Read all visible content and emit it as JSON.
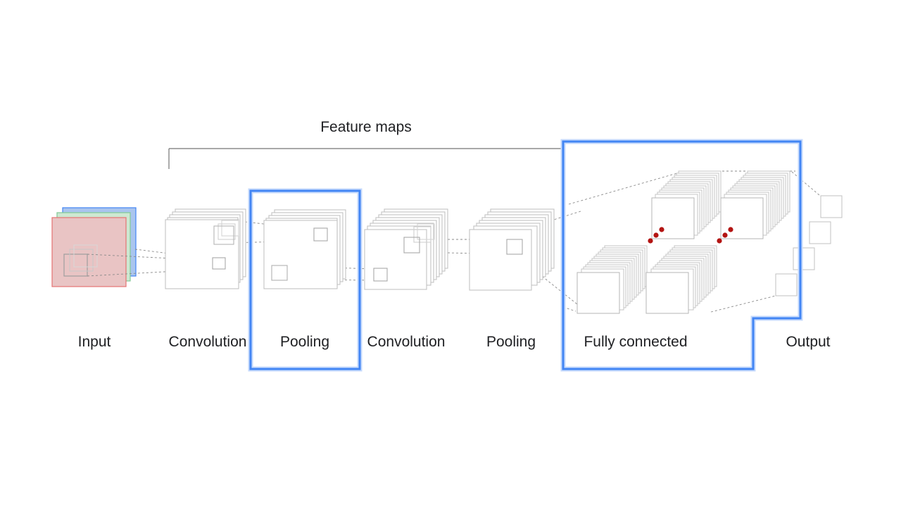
{
  "header": {
    "feature_maps_label": "Feature maps"
  },
  "stages": [
    {
      "id": "input",
      "label": "Input",
      "highlighted": false
    },
    {
      "id": "convolution-1",
      "label": "Convolution",
      "highlighted": false
    },
    {
      "id": "pooling-1",
      "label": "Pooling",
      "highlighted": true
    },
    {
      "id": "convolution-2",
      "label": "Convolution",
      "highlighted": false
    },
    {
      "id": "pooling-2",
      "label": "Pooling",
      "highlighted": false
    },
    {
      "id": "fully-connected",
      "label": "Fully connected",
      "highlighted": true
    },
    {
      "id": "output",
      "label": "Output",
      "highlighted": false
    }
  ],
  "colors": {
    "highlight": "#4285f4",
    "highlight_glow": "#c6dafc",
    "input_red": "#ea4335",
    "input_green": "#34a853",
    "input_blue": "#4285f4",
    "neuron_dots": "#b31412",
    "map_stroke": "#bdbdbd",
    "text": "#202124"
  }
}
